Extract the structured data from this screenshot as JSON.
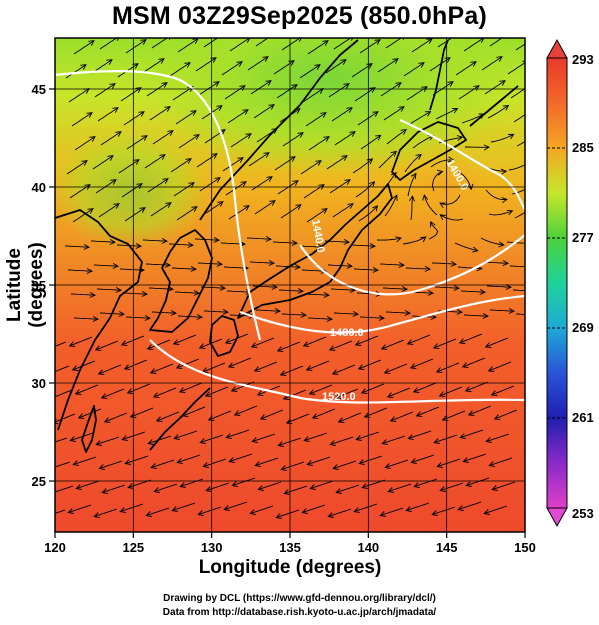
{
  "title": "MSM 03Z29Sep2025 (850.0hPa)",
  "axes": {
    "x_label": "Longitude (degrees)",
    "y_label": "Latitude  (degrees)",
    "x_ticks": [
      "120",
      "125",
      "130",
      "135",
      "140",
      "145",
      "150"
    ],
    "y_ticks": [
      "25",
      "30",
      "35",
      "40",
      "45"
    ],
    "x_range": [
      120,
      150
    ],
    "y_range": [
      22.4,
      47.6
    ]
  },
  "colorbar": {
    "labels": [
      "293",
      "285",
      "277",
      "269",
      "261",
      "253"
    ],
    "range": [
      253,
      293
    ],
    "colors_top_to_bottom": [
      "#e83a2a",
      "#f2692a",
      "#f5a623",
      "#c8e62a",
      "#4cd23a",
      "#1fd29a",
      "#1eaad6",
      "#2a54d8",
      "#1f1fb0",
      "#8a2ac8",
      "#e040c8"
    ]
  },
  "contours": {
    "color": "#ffffff",
    "labels": [
      "1480.0",
      "1520.0",
      "1400.0",
      "1440.0"
    ]
  },
  "credits": {
    "line1": "Drawing by DCL (https://www.gfd-dennou.org/library/dcl/)",
    "line2": "Data from http://database.rish.kyoto-u.ac.jp/arch/jmadata/"
  }
}
